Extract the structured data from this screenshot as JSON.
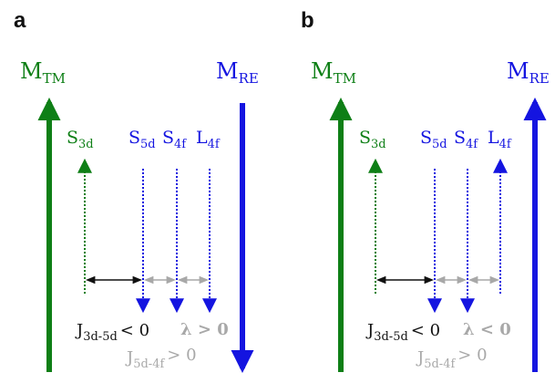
{
  "colors": {
    "green": "#0e7f16",
    "blue": "#1414e0",
    "black": "#111111",
    "gray": "#a8a8a8"
  },
  "panels": [
    {
      "label": "a",
      "m_tm": {
        "base": "M",
        "sub": "TM"
      },
      "m_re": {
        "base": "M",
        "sub": "RE"
      },
      "spins": [
        {
          "base": "S",
          "sub": "3d",
          "color": "green",
          "direction": "up"
        },
        {
          "base": "S",
          "sub": "5d",
          "color": "blue",
          "direction": "down"
        },
        {
          "base": "S",
          "sub": "4f",
          "color": "blue",
          "direction": "down"
        },
        {
          "base": "L",
          "sub": "4f",
          "color": "blue",
          "direction": "down"
        }
      ],
      "coupling_3d5d": {
        "base": "J",
        "sub": "3d-5d",
        "rel": "< 0"
      },
      "lambda": "λ > 0",
      "coupling_5d4f": {
        "base": "J",
        "sub": "5d-4f",
        "rel": "> 0"
      }
    },
    {
      "label": "b",
      "m_tm": {
        "base": "M",
        "sub": "TM"
      },
      "m_re": {
        "base": "M",
        "sub": "RE"
      },
      "spins": [
        {
          "base": "S",
          "sub": "3d",
          "color": "green",
          "direction": "up"
        },
        {
          "base": "S",
          "sub": "5d",
          "color": "blue",
          "direction": "down"
        },
        {
          "base": "S",
          "sub": "4f",
          "color": "blue",
          "direction": "down"
        },
        {
          "base": "L",
          "sub": "4f",
          "color": "blue",
          "direction": "up"
        }
      ],
      "coupling_3d5d": {
        "base": "J",
        "sub": "3d-5d",
        "rel": "< 0"
      },
      "lambda": "λ < 0",
      "coupling_5d4f": {
        "base": "J",
        "sub": "5d-4f",
        "rel": "> 0"
      }
    }
  ]
}
